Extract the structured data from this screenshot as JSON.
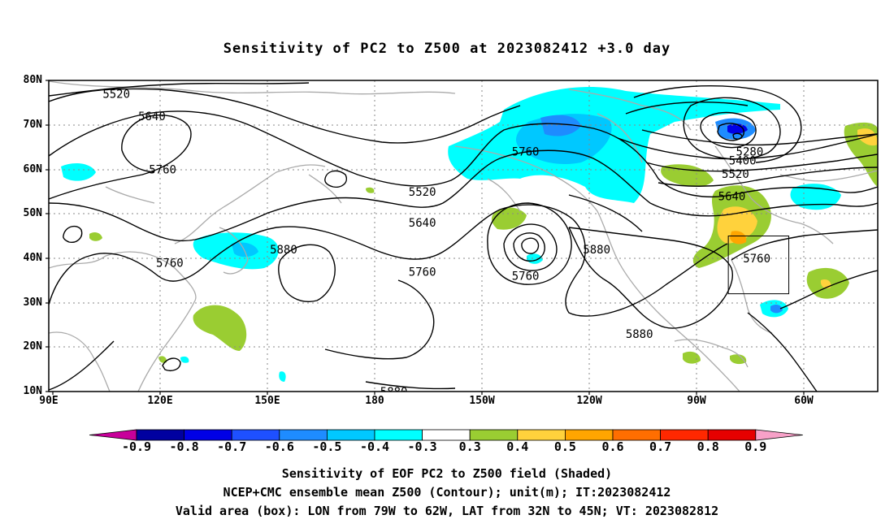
{
  "title": "Sensitivity of PC2 to Z500 at 2023082412 +3.0 day",
  "map": {
    "lon_range": [
      90,
      323
    ],
    "lat_range": [
      10,
      80
    ],
    "lat_labels": [
      "80N",
      "70N",
      "60N",
      "50N",
      "40N",
      "30N",
      "20N",
      "10N"
    ],
    "lon_labels": [
      "90E",
      "120E",
      "150E",
      "180",
      "150W",
      "120W",
      "90W",
      "60W"
    ],
    "contour_labels": [
      {
        "text": "5520",
        "lon": 109,
        "lat": 77
      },
      {
        "text": "5640",
        "lon": 119,
        "lat": 72
      },
      {
        "text": "5760",
        "lon": 122,
        "lat": 60
      },
      {
        "text": "5760",
        "lon": 124,
        "lat": 39
      },
      {
        "text": "5880",
        "lon": 156,
        "lat": 42
      },
      {
        "text": "5520",
        "lon": 195,
        "lat": 55
      },
      {
        "text": "5640",
        "lon": 195,
        "lat": 48
      },
      {
        "text": "5760",
        "lon": 195,
        "lat": 37
      },
      {
        "text": "5760",
        "lon": 224,
        "lat": 64
      },
      {
        "text": "5760",
        "lon": 224,
        "lat": 36
      },
      {
        "text": "5880",
        "lon": 244,
        "lat": 42
      },
      {
        "text": "5880",
        "lon": 256,
        "lat": 23
      },
      {
        "text": "5880",
        "lon": 187,
        "lat": 10
      },
      {
        "text": "5280",
        "lon": 287,
        "lat": 64
      },
      {
        "text": "5400",
        "lon": 285,
        "lat": 62
      },
      {
        "text": "5520",
        "lon": 283,
        "lat": 59
      },
      {
        "text": "5640",
        "lon": 282,
        "lat": 54
      },
      {
        "text": "5760",
        "lon": 289,
        "lat": 40
      }
    ],
    "valid_box": {
      "lon_west": -79,
      "lon_east": -62,
      "lat_south": 32,
      "lat_north": 45
    },
    "colors": {
      "contour": "#000000",
      "coast": "#aaaaaa",
      "grid": "#888888"
    }
  },
  "colorbar": {
    "labels": [
      "-0.9",
      "-0.8",
      "-0.7",
      "-0.6",
      "-0.5",
      "-0.4",
      "-0.3",
      "0.3",
      "0.4",
      "0.5",
      "0.6",
      "0.7",
      "0.8",
      "0.9"
    ],
    "under_color": "#c8009a",
    "over_color": "#f7a1c8",
    "colors": [
      "#0000a0",
      "#0000e6",
      "#1e50ff",
      "#1e8cff",
      "#00c8ff",
      "#00ffff",
      "#ffffff",
      "#9acd32",
      "#ffd23c",
      "#ffa500",
      "#ff6e00",
      "#ff2800",
      "#e60000"
    ]
  },
  "caption": {
    "line1": "Sensitivity of EOF PC2 to Z500 field (Shaded)",
    "line2": "NCEP+CMC ensemble mean Z500 (Contour); unit(m); IT:2023082412",
    "line3": "Valid area (box): LON from 79W to 62W, LAT from 32N to 45N; VT: 2023082812"
  }
}
